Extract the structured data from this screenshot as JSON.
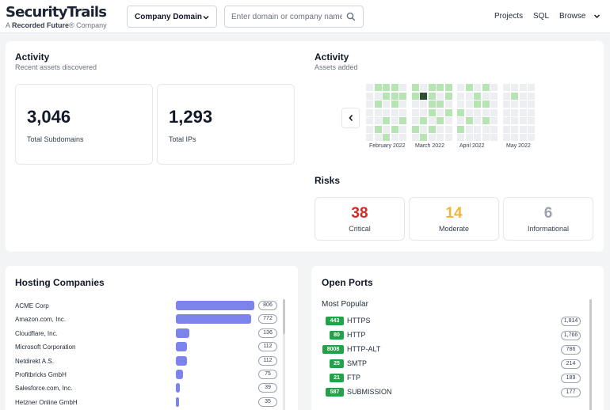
{
  "header": {
    "logo_main": "SecurityTrails",
    "logo_prefix": "A ",
    "logo_brand": "Recorded Future",
    "logo_suffix": "® Company",
    "select_value": "Company Domain",
    "search_placeholder": "Enter domain or company name",
    "nav": {
      "projects": "Projects",
      "sql": "SQL",
      "browse": "Browse"
    }
  },
  "activity": {
    "title": "Activity",
    "subtitle": "Recent assets discovered",
    "stats": [
      {
        "value": "3,046",
        "label": "Total Subdomains"
      },
      {
        "value": "1,293",
        "label": "Total IPs"
      }
    ]
  },
  "assets": {
    "title": "Activity",
    "subtitle": "Assets added",
    "months": [
      "February 2022",
      "March 2022",
      "April 2022",
      "May 2022"
    ],
    "colors": {
      "empty": "#eceef1",
      "low": "#b7e4b3",
      "mid": "#9bd79a",
      "high": "#2e4f36"
    },
    "levels": [
      [
        0,
        0,
        0,
        0,
        0,
        0,
        0
      ],
      [
        1,
        0,
        1,
        0,
        0,
        1,
        0
      ],
      [
        1,
        1,
        0,
        0,
        1,
        0,
        1
      ],
      [
        1,
        1,
        1,
        0,
        0,
        1,
        0
      ],
      [
        0,
        1,
        0,
        0,
        1,
        0,
        0
      ],
      [
        -1,
        -1,
        -1,
        -1,
        -1,
        -1,
        -1
      ],
      [
        1,
        1,
        0,
        0,
        0,
        1,
        0
      ],
      [
        0,
        3,
        0,
        0,
        1,
        0,
        1
      ],
      [
        1,
        1,
        1,
        1,
        0,
        1,
        0
      ],
      [
        1,
        0,
        1,
        0,
        1,
        0,
        0
      ],
      [
        1,
        1,
        0,
        1,
        0,
        0,
        0
      ],
      [
        -1,
        -1,
        -1,
        -1,
        -1,
        -1,
        -1
      ],
      [
        0,
        0,
        0,
        1,
        0,
        1,
        0
      ],
      [
        1,
        0,
        0,
        0,
        1,
        0,
        0
      ],
      [
        0,
        1,
        1,
        0,
        0,
        0,
        0
      ],
      [
        1,
        0,
        1,
        0,
        1,
        0,
        0
      ],
      [
        0,
        0,
        0,
        0,
        0,
        0,
        0
      ],
      [
        -1,
        -1,
        -1,
        -1,
        -1,
        -1,
        -1
      ],
      [
        0,
        0,
        0,
        0,
        0,
        0,
        0
      ],
      [
        0,
        1,
        0,
        0,
        0,
        0,
        0
      ],
      [
        0,
        0,
        0,
        0,
        0,
        0,
        0
      ],
      [
        0,
        0,
        0,
        0,
        0,
        0,
        0
      ]
    ]
  },
  "risks": {
    "title": "Risks",
    "items": [
      {
        "value": "38",
        "label": "Critical",
        "color": "#dc2626"
      },
      {
        "value": "14",
        "label": "Moderate",
        "color": "#f5b731"
      },
      {
        "value": "6",
        "label": "Informational",
        "color": "#9ca3af"
      }
    ]
  },
  "hosting": {
    "title": "Hosting Companies",
    "items": [
      {
        "name": "ACME Corp",
        "count": "806",
        "value": 806
      },
      {
        "name": "Amazon.com, Inc.",
        "count": "772",
        "value": 772
      },
      {
        "name": "Cloudflare, Inc.",
        "count": "136",
        "value": 136
      },
      {
        "name": "Microsoft Corporation",
        "count": "112",
        "value": 112
      },
      {
        "name": "Netdirekt A.S.",
        "count": "112",
        "value": 112
      },
      {
        "name": "Profitbricks GmbH",
        "count": "75",
        "value": 75
      },
      {
        "name": "Salesforce.com, Inc.",
        "count": "39",
        "value": 39
      },
      {
        "name": "Hetzner Online GmbH",
        "count": "35",
        "value": 35
      }
    ]
  },
  "ports": {
    "title": "Open Ports",
    "subtitle": "Most Popular",
    "items": [
      {
        "port": "443",
        "name": "HTTPS",
        "count": "1,814"
      },
      {
        "port": "80",
        "name": "HTTP",
        "count": "1,766"
      },
      {
        "port": "8008",
        "name": "HTTP-ALT",
        "count": "786"
      },
      {
        "port": "25",
        "name": "SMTP",
        "count": "214"
      },
      {
        "port": "21",
        "name": "FTP",
        "count": "189"
      },
      {
        "port": "587",
        "name": "SUBMISSION",
        "count": "177"
      }
    ]
  }
}
